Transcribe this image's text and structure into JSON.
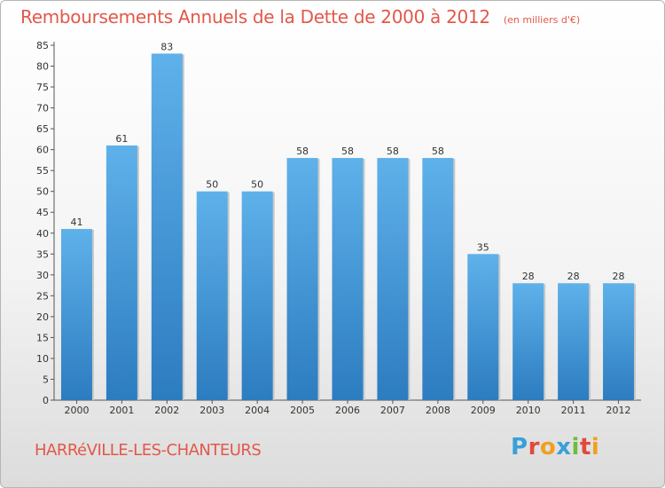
{
  "header": {
    "title": "Remboursements Annuels de la Dette de 2000 à 2012",
    "unit": "(en milliers d'€)"
  },
  "footer": {
    "commune": "HARRéVILLE-LES-CHANTEURS",
    "logo_letters": [
      "P",
      "r",
      "o",
      "x",
      "i",
      "t",
      "i"
    ],
    "logo_colors": [
      "#3aa0d8",
      "#e04a3a",
      "#f0a020",
      "#3aa0d8",
      "#6cbd3c",
      "#e04a3a",
      "#f0a020"
    ]
  },
  "colors": {
    "bar_top": "#5fb1ea",
    "bar_bottom": "#2c7cc0",
    "title": "#e2584a"
  },
  "chart_data": {
    "type": "bar",
    "title": "Remboursements Annuels de la Dette de 2000 à 2012",
    "subtitle": "(en milliers d'€)",
    "xlabel": "",
    "ylabel": "",
    "categories": [
      "2000",
      "2001",
      "2002",
      "2003",
      "2004",
      "2005",
      "2006",
      "2007",
      "2008",
      "2009",
      "2010",
      "2011",
      "2012"
    ],
    "values": [
      41,
      61,
      83,
      50,
      50,
      58,
      58,
      58,
      58,
      35,
      28,
      28,
      28
    ],
    "ylim": [
      0,
      85
    ],
    "yticks": [
      0,
      5,
      10,
      15,
      20,
      25,
      30,
      35,
      40,
      45,
      50,
      55,
      60,
      65,
      70,
      75,
      80,
      85
    ],
    "grid": false,
    "legend": "none",
    "data_labels": true
  }
}
